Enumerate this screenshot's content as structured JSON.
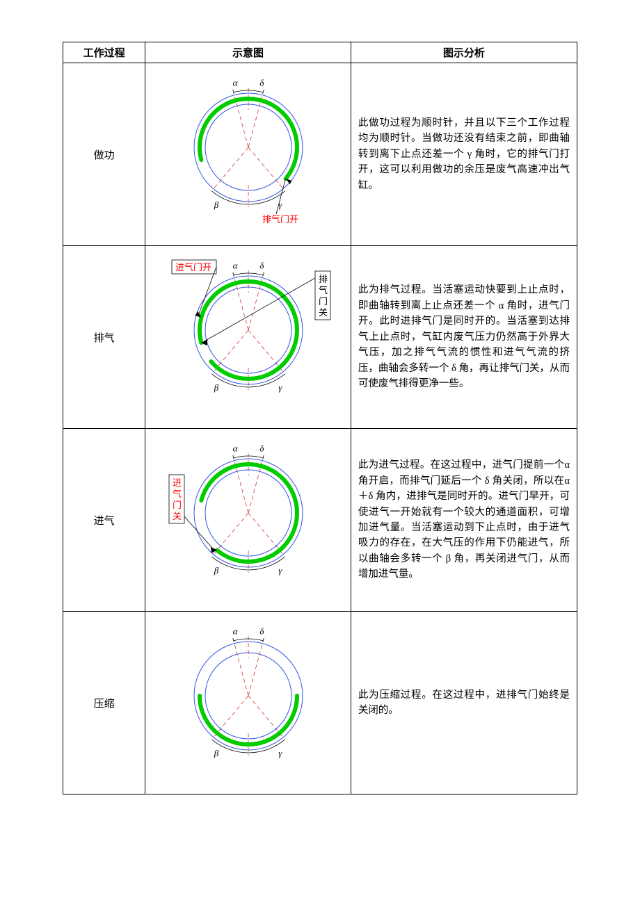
{
  "headers": {
    "c1": "工作过程",
    "c2": "示意图",
    "c3": "图示分析"
  },
  "diagram_style": {
    "outer_circle_color": "#3355dd",
    "inner_circle_color": "#3355dd",
    "dash_line_color": "#cc3333",
    "arc_color": "#00cc00",
    "arc_stroke_width": 6,
    "label_color_red": "#ff0000",
    "label_color_black": "#000000",
    "angles": {
      "alpha_deg": 15,
      "delta_deg": 15,
      "beta_deg": 40,
      "gamma_deg": 40
    }
  },
  "greek": {
    "alpha": "α",
    "beta": "β",
    "gamma": "γ",
    "delta": "δ"
  },
  "rows": [
    {
      "process": "做功",
      "arc": {
        "start_deg": -105,
        "end_deg": 130
      },
      "callouts": [
        {
          "text": "排气门开",
          "color": "red",
          "boxed": false,
          "target_deg": 130,
          "label_pos": "bottom-right",
          "vertical": false
        }
      ],
      "analysis": "此做功过程为顺时针，并且以下三个工作过程均为顺时针。当做功还没有结束之前，即曲轴转到离下止点还差一个 γ 角时，它的排气门打开，这可以利用做功的余压是废气高速冲出气缸。"
    },
    {
      "process": "排气",
      "arc": {
        "start_deg": -105,
        "end_deg": 230
      },
      "callouts": [
        {
          "text": "进气门开",
          "color": "red",
          "boxed": true,
          "target_deg": -75,
          "label_pos": "top-left",
          "vertical": false
        },
        {
          "text": "排气门关",
          "color": "black",
          "boxed": true,
          "target_deg": -105,
          "label_pos": "right",
          "vertical": true
        }
      ],
      "analysis": "此为排气过程。当活塞运动快要到上止点时，即曲轴转到离上止点还差一个 α 角时，进气门开。此时进排气门是同时开的。当活塞到达排气上止点时，气缸内废气压力仍然高于外界大气压，加之排气气流的惯性和进气气流的挤压，曲轴会多转一个 δ 角，再让排气门关，从而可使废气排得更净一些。"
    },
    {
      "process": "进气",
      "arc": {
        "start_deg": -75,
        "end_deg": 220
      },
      "callouts": [
        {
          "text": "进气门关",
          "color": "red",
          "boxed": true,
          "target_deg": 220,
          "label_pos": "left",
          "vertical": true
        }
      ],
      "analysis": "此为进气过程。在这过程中，进气门提前一个α角开启，而排气门延后一个 δ 角关闭，所以在α＋δ 角内，进排气是同时开的。进气门早开，可使进气一开始就有一个较大的通道面积，可增加进气量。当活塞运动到下止点时，由于进气吸力的存在，在大气压的作用下仍能进气，所以曲轴会多转一个 β 角，再关闭进气门，从而增加进气量。"
    },
    {
      "process": "压缩",
      "arc": {
        "start_deg": -90,
        "end_deg": -270
      },
      "callouts": [],
      "analysis": "此为压缩过程。在这过程中，进排气门始终是关闭的。"
    }
  ]
}
